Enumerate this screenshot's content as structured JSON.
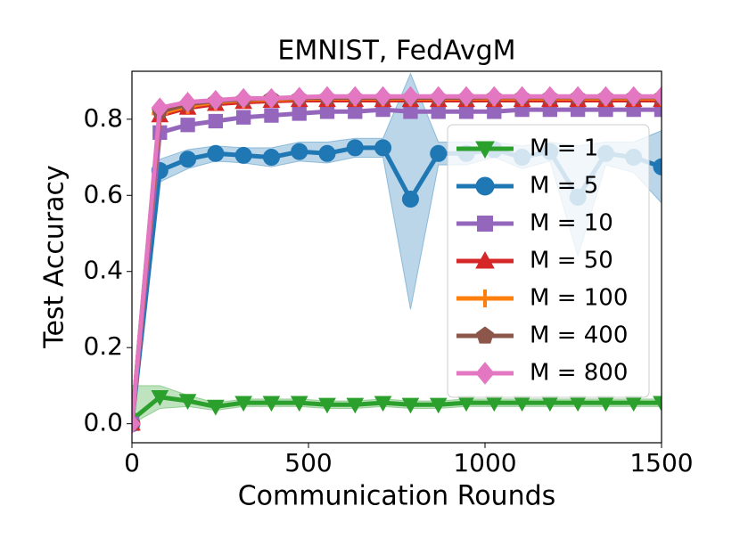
{
  "chart_data": {
    "type": "line",
    "title": "EMNIST, FedAvgM",
    "x_label": "Communication Rounds",
    "y_label": "Test Accuracy",
    "xlim": [
      0,
      1500
    ],
    "ylim": [
      -0.05,
      0.926
    ],
    "xticks": [
      0,
      500,
      1000,
      1500
    ],
    "yticks": [
      {
        "value": 0,
        "label": "0.0"
      },
      {
        "value": 0.2,
        "label": "0.2"
      },
      {
        "value": 0.4,
        "label": "0.4"
      },
      {
        "value": 0.6,
        "label": "0.6"
      },
      {
        "value": 0.8,
        "label": "0.8"
      }
    ],
    "x": [
      0,
      79,
      158,
      237,
      316,
      395,
      474,
      553,
      632,
      711,
      789,
      868,
      947,
      1026,
      1105,
      1184,
      1263,
      1342,
      1421,
      1500
    ],
    "legend": "right",
    "series": [
      {
        "name": "M = 1",
        "color": "#2ca02c",
        "marker": "triangle-down",
        "values": [
          0.01,
          0.07,
          0.06,
          0.045,
          0.055,
          0.055,
          0.055,
          0.05,
          0.05,
          0.055,
          0.05,
          0.05,
          0.055,
          0.055,
          0.055,
          0.055,
          0.055,
          0.055,
          0.055,
          0.055
        ],
        "lower": [
          0.0,
          0.04,
          0.045,
          0.035,
          0.045,
          0.045,
          0.045,
          0.04,
          0.04,
          0.045,
          0.04,
          0.04,
          0.045,
          0.045,
          0.045,
          0.045,
          0.045,
          0.045,
          0.045,
          0.045
        ],
        "upper": [
          0.1,
          0.1,
          0.075,
          0.055,
          0.065,
          0.065,
          0.065,
          0.06,
          0.06,
          0.065,
          0.06,
          0.06,
          0.065,
          0.065,
          0.065,
          0.065,
          0.065,
          0.065,
          0.065,
          0.065
        ]
      },
      {
        "name": "M = 5",
        "color": "#1f77b4",
        "marker": "circle",
        "values": [
          0.0,
          0.665,
          0.695,
          0.71,
          0.705,
          0.7,
          0.715,
          0.71,
          0.725,
          0.725,
          0.59,
          0.71,
          0.71,
          0.72,
          0.7,
          0.715,
          0.595,
          0.71,
          0.7,
          0.675
        ],
        "lower": [
          0.0,
          0.635,
          0.67,
          0.69,
          0.685,
          0.675,
          0.69,
          0.685,
          0.7,
          0.7,
          0.3,
          0.68,
          0.68,
          0.7,
          0.67,
          0.69,
          0.44,
          0.68,
          0.66,
          0.58
        ],
        "upper": [
          0.0,
          0.695,
          0.72,
          0.73,
          0.725,
          0.725,
          0.74,
          0.74,
          0.75,
          0.75,
          0.92,
          0.74,
          0.74,
          0.74,
          0.73,
          0.74,
          0.73,
          0.74,
          0.74,
          0.77
        ]
      },
      {
        "name": "M = 10",
        "color": "#9467bd",
        "marker": "square",
        "values": [
          0.0,
          0.765,
          0.785,
          0.795,
          0.805,
          0.81,
          0.815,
          0.82,
          0.82,
          0.825,
          0.82,
          0.82,
          0.82,
          0.82,
          0.825,
          0.825,
          0.825,
          0.825,
          0.825,
          0.825
        ]
      },
      {
        "name": "M = 50",
        "color": "#d62728",
        "marker": "triangle-up",
        "values": [
          0.0,
          0.81,
          0.83,
          0.84,
          0.845,
          0.848,
          0.85,
          0.85,
          0.85,
          0.85,
          0.85,
          0.85,
          0.85,
          0.85,
          0.85,
          0.85,
          0.85,
          0.85,
          0.85,
          0.85
        ]
      },
      {
        "name": "M = 100",
        "color": "#ff7f0e",
        "marker": "plus",
        "values": [
          0.0,
          0.815,
          0.835,
          0.845,
          0.85,
          0.852,
          0.854,
          0.855,
          0.855,
          0.855,
          0.855,
          0.855,
          0.855,
          0.855,
          0.855,
          0.855,
          0.855,
          0.855,
          0.855,
          0.855
        ]
      },
      {
        "name": "M = 400",
        "color": "#8c564b",
        "marker": "pentagon",
        "values": [
          0.0,
          0.82,
          0.84,
          0.848,
          0.852,
          0.855,
          0.856,
          0.857,
          0.857,
          0.857,
          0.857,
          0.857,
          0.857,
          0.858,
          0.858,
          0.858,
          0.858,
          0.858,
          0.858,
          0.858
        ]
      },
      {
        "name": "M = 800",
        "color": "#e377c2",
        "marker": "diamond",
        "values": [
          0.0,
          0.83,
          0.845,
          0.85,
          0.855,
          0.855,
          0.858,
          0.86,
          0.86,
          0.86,
          0.86,
          0.86,
          0.86,
          0.86,
          0.86,
          0.86,
          0.86,
          0.86,
          0.86,
          0.86
        ]
      }
    ]
  }
}
